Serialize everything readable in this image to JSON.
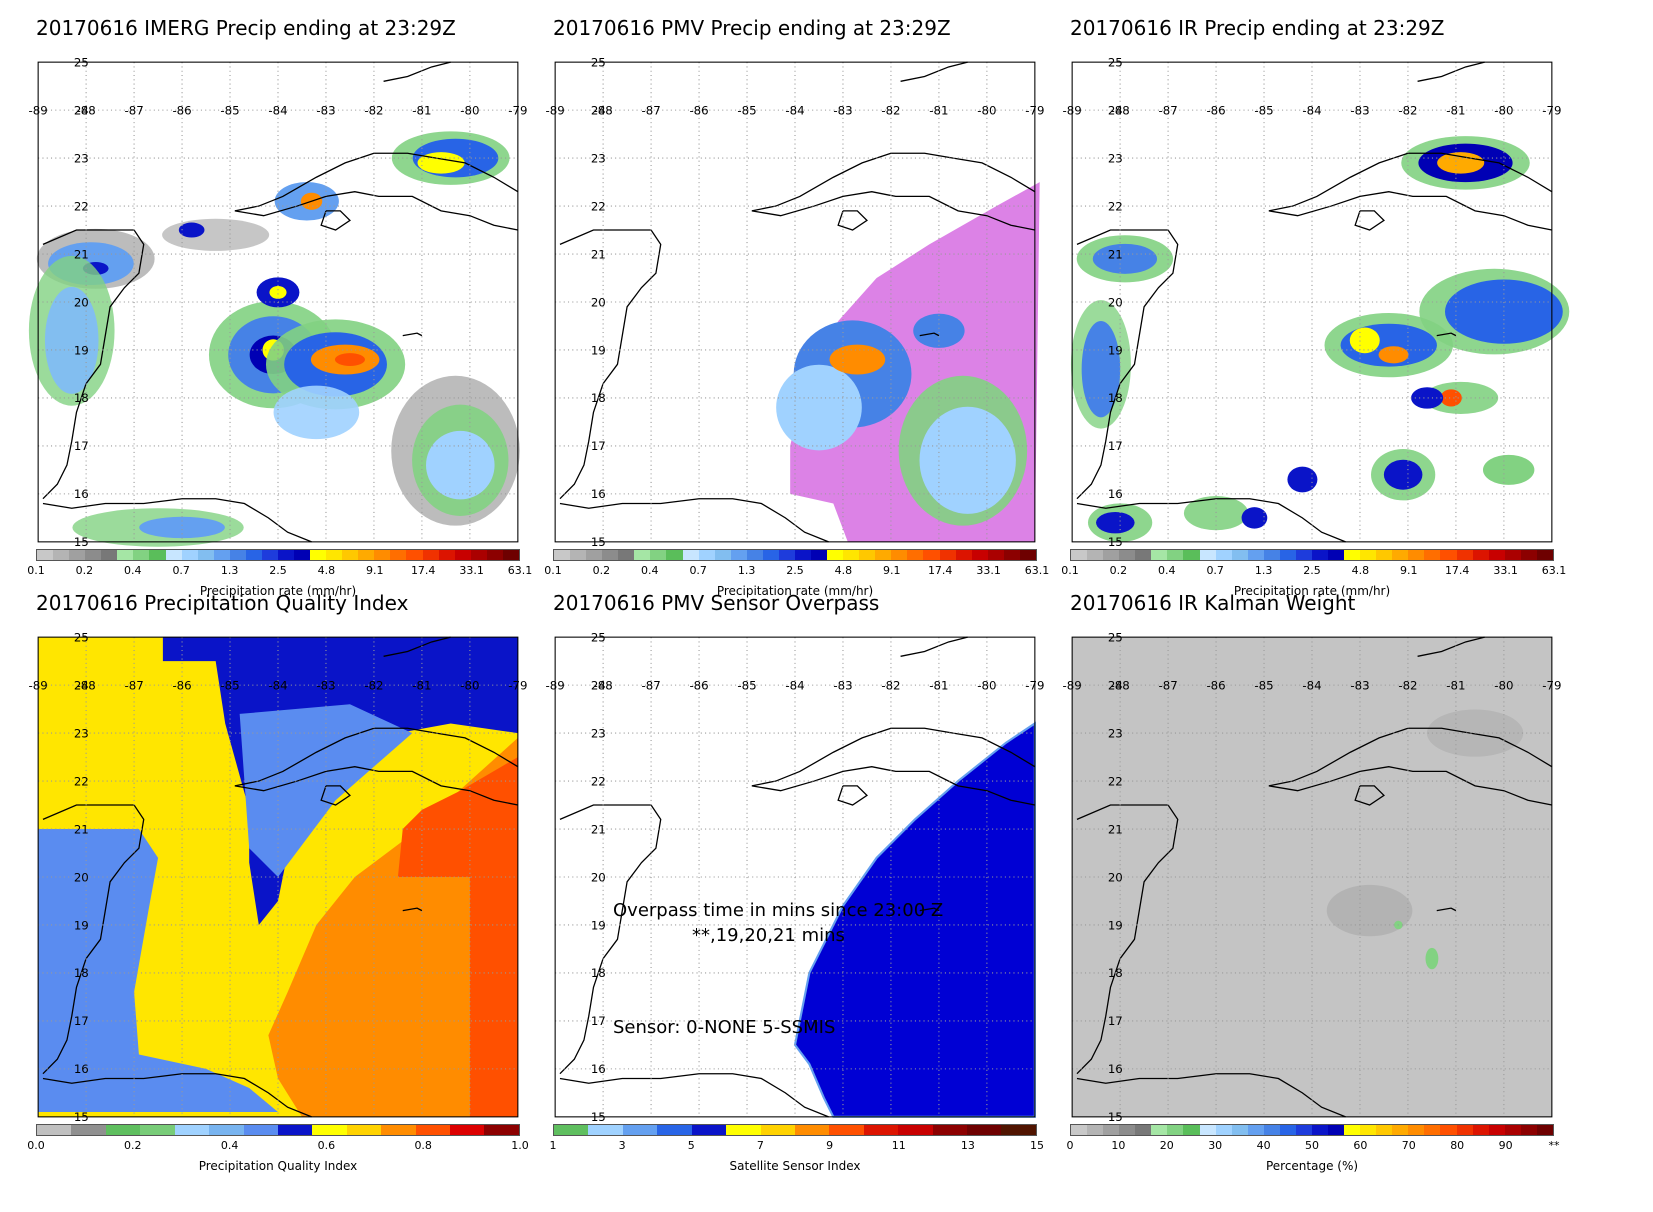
{
  "panels": [
    {
      "title": "20170616 IMERG Precip ending at 23:29Z",
      "colorbar": "precip",
      "field": "imerg"
    },
    {
      "title": "20170616 PMV Precip ending at 23:29Z",
      "colorbar": "precip",
      "field": "pmv"
    },
    {
      "title": "20170616 IR Precip ending at 23:29Z",
      "colorbar": "precip",
      "field": "ir"
    },
    {
      "title": "20170616 Precipitation Quality Index",
      "colorbar": "pqi",
      "field": "pqi"
    },
    {
      "title": "20170616 PMV Sensor Overpass",
      "colorbar": "sensor",
      "field": "sensor"
    },
    {
      "title": "20170616 IR Kalman Weight",
      "colorbar": "kalman",
      "field": "kalman"
    }
  ],
  "colorbars": {
    "precip": {
      "label": "Precipitation rate (mm/hr)",
      "ticks": [
        "0.1",
        "0.2",
        "0.4",
        "0.7",
        "1.3",
        "2.5",
        "4.8",
        "9.1",
        "17.4",
        "33.1",
        "63.1"
      ],
      "colors": [
        "#c8c8c8",
        "#b4b4b4",
        "#a0a0a0",
        "#8c8c8c",
        "#787878",
        "#a5e6a5",
        "#82d282",
        "#5abe5a",
        "#c8e6ff",
        "#a0d2ff",
        "#82bef0",
        "#64a0f0",
        "#4682e6",
        "#2864e6",
        "#1e3cdc",
        "#0a14c8",
        "#0000b4",
        "#ffff00",
        "#ffe600",
        "#ffc800",
        "#ffaa00",
        "#ff8c00",
        "#ff6e00",
        "#ff5000",
        "#f03200",
        "#dc1400",
        "#c80000",
        "#aa0000",
        "#8c0000",
        "#6e0000"
      ]
    },
    "pqi": {
      "label": "Precipitation Quality Index",
      "ticks": [
        "0.0",
        "0.2",
        "0.4",
        "0.6",
        "0.8",
        "1.0"
      ],
      "colors": [
        "#c0c0c0",
        "#909090",
        "#5fbf5f",
        "#78cc78",
        "#a0d2ff",
        "#78b4f0",
        "#5a8cf0",
        "#0a14c8",
        "#ffff00",
        "#ffd200",
        "#ff8c00",
        "#ff5000",
        "#dc0000",
        "#8c0000"
      ]
    },
    "sensor": {
      "label": "Satellite Sensor Index",
      "ticks": [
        "1",
        "3",
        "5",
        "7",
        "9",
        "11",
        "13",
        "15"
      ],
      "colors": [
        "#5fbf5f",
        "#a0d2ff",
        "#64a0f0",
        "#2864e6",
        "#0a14c8",
        "#ffff00",
        "#ffd200",
        "#ff8c00",
        "#ff5000",
        "#dc1400",
        "#c80000",
        "#8c0000",
        "#6e0000",
        "#501400"
      ]
    },
    "kalman": {
      "label": "Percentage (%)",
      "ticks": [
        "0",
        "10",
        "20",
        "30",
        "40",
        "50",
        "60",
        "70",
        "80",
        "90",
        "**"
      ],
      "colors": [
        "#c8c8c8",
        "#b4b4b4",
        "#a0a0a0",
        "#8c8c8c",
        "#787878",
        "#a5e6a5",
        "#82d282",
        "#5abe5a",
        "#c8e6ff",
        "#a0d2ff",
        "#82bef0",
        "#64a0f0",
        "#4682e6",
        "#2864e6",
        "#1e3cdc",
        "#0a14c8",
        "#0000b4",
        "#ffff00",
        "#ffe600",
        "#ffc800",
        "#ffaa00",
        "#ff8c00",
        "#ff6e00",
        "#ff5000",
        "#f03200",
        "#dc1400",
        "#c80000",
        "#aa0000",
        "#8c0000",
        "#6e0000"
      ]
    }
  },
  "overpass_text": {
    "line1": "Overpass time in mins since 23:00 Z",
    "line2": "**,19,20,21 mins",
    "line3": "Sensor:   0-NONE  5-SSMIS"
  },
  "chart_data": {
    "type": "heatmap",
    "x_ticks": [
      "-89",
      "-88",
      "-87",
      "-86",
      "-85",
      "-84",
      "-83",
      "-82",
      "-81",
      "-80",
      "-79"
    ],
    "y_ticks": [
      "25",
      "24",
      "23",
      "22",
      "21",
      "20",
      "19",
      "18",
      "17",
      "16",
      "15"
    ],
    "xlim": [
      -89,
      -79
    ],
    "ylim": [
      15,
      25
    ],
    "description_units": {
      "precip": "mm/hr",
      "pqi": "index 0-1",
      "sensor": "sensor index",
      "kalman": "percent"
    }
  },
  "colors": {
    "land_outline": "#000000",
    "grid": "#999999",
    "pmv_swath": "#dc82e6",
    "kalman_bg": "#c4c4c4"
  }
}
